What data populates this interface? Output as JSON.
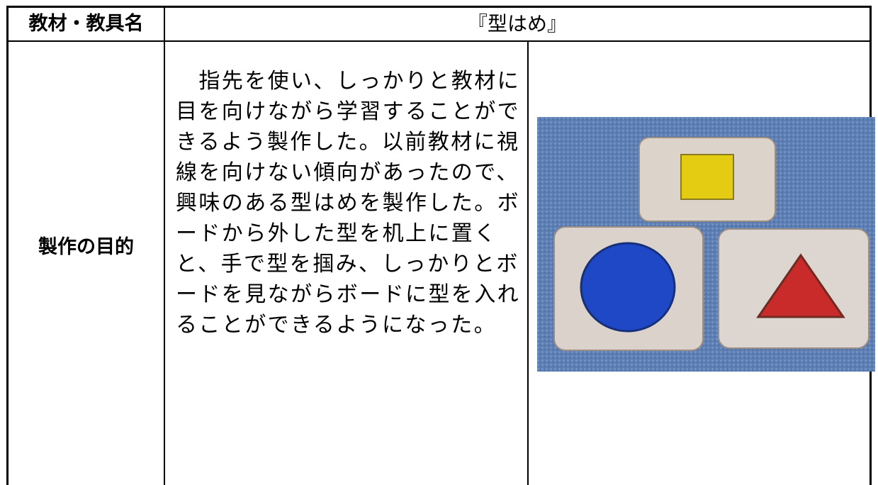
{
  "table": {
    "header": {
      "label": "教材・教具名",
      "value": "『型はめ』"
    },
    "rows": [
      {
        "label": "製作の目的",
        "lines": [
          "　指先を使い、しっかりと教材に",
          "目を向けながら学習することがで",
          "きるよう製作した。以前教材に視",
          "線を向けない傾向があったので、",
          "興味のある型はめを製作した。ボ",
          "ードから外した型を机上に置く",
          "と、手で型を掴み、しっかりとボ",
          "ードを見ながらボードに型を入れ",
          "ることができるようになった。"
        ]
      }
    ]
  }
}
